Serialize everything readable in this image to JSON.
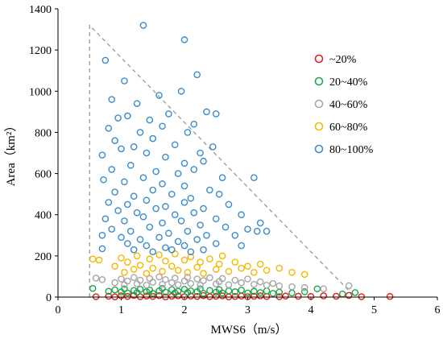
{
  "chart_data": {
    "type": "scatter",
    "xlabel": "MWS6（m/s）",
    "ylabel": "Area（km²）",
    "xlim": [
      0,
      6
    ],
    "ylim": [
      0,
      1400
    ],
    "xticks": [
      "0",
      "1",
      "2",
      "3",
      "4",
      "5",
      "6"
    ],
    "yticks": [
      "0",
      "200",
      "400",
      "600",
      "800",
      "1000",
      "1200",
      "1400"
    ],
    "grid": false,
    "legend_position": "right",
    "marker": "hollow-circle",
    "envelope": {
      "style": "dashed",
      "color": "#999999",
      "points": [
        [
          0.5,
          0
        ],
        [
          0.5,
          1320
        ],
        [
          4.7,
          0
        ]
      ]
    },
    "series": [
      {
        "name": "~20%",
        "color": "#e3201b",
        "points": [
          [
            0.6,
            2
          ],
          [
            0.8,
            4
          ],
          [
            0.9,
            1
          ],
          [
            1.0,
            6
          ],
          [
            1.1,
            3
          ],
          [
            1.2,
            8
          ],
          [
            1.3,
            2
          ],
          [
            1.4,
            5
          ],
          [
            1.5,
            3
          ],
          [
            1.6,
            7
          ],
          [
            1.7,
            1
          ],
          [
            1.8,
            4
          ],
          [
            1.9,
            6
          ],
          [
            2.0,
            2
          ],
          [
            2.1,
            5
          ],
          [
            2.2,
            3
          ],
          [
            2.3,
            7
          ],
          [
            2.4,
            2
          ],
          [
            2.5,
            4
          ],
          [
            2.6,
            6
          ],
          [
            2.7,
            1
          ],
          [
            2.8,
            3
          ],
          [
            2.9,
            5
          ],
          [
            3.0,
            2
          ],
          [
            3.1,
            4
          ],
          [
            3.2,
            6
          ],
          [
            3.3,
            3
          ],
          [
            3.5,
            2
          ],
          [
            3.6,
            5
          ],
          [
            3.8,
            4
          ],
          [
            4.0,
            3
          ],
          [
            4.2,
            6
          ],
          [
            4.4,
            4
          ],
          [
            4.6,
            8
          ],
          [
            4.8,
            2
          ],
          [
            5.25,
            3
          ]
        ]
      },
      {
        "name": "20~40%",
        "color": "#1aa64a",
        "points": [
          [
            0.55,
            42
          ],
          [
            0.8,
            28
          ],
          [
            0.9,
            35
          ],
          [
            1.0,
            25
          ],
          [
            1.05,
            40
          ],
          [
            1.1,
            20
          ],
          [
            1.2,
            32
          ],
          [
            1.25,
            22
          ],
          [
            1.3,
            38
          ],
          [
            1.4,
            26
          ],
          [
            1.45,
            34
          ],
          [
            1.5,
            18
          ],
          [
            1.6,
            30
          ],
          [
            1.65,
            42
          ],
          [
            1.7,
            24
          ],
          [
            1.8,
            36
          ],
          [
            1.85,
            20
          ],
          [
            1.9,
            28
          ],
          [
            2.0,
            38
          ],
          [
            2.05,
            22
          ],
          [
            2.1,
            30
          ],
          [
            2.2,
            26
          ],
          [
            2.25,
            40
          ],
          [
            2.3,
            18
          ],
          [
            2.4,
            32
          ],
          [
            2.5,
            24
          ],
          [
            2.55,
            36
          ],
          [
            2.6,
            20
          ],
          [
            2.7,
            30
          ],
          [
            2.8,
            26
          ],
          [
            2.9,
            34
          ],
          [
            3.0,
            20
          ],
          [
            3.1,
            28
          ],
          [
            3.2,
            22
          ],
          [
            3.3,
            30
          ],
          [
            3.4,
            18
          ],
          [
            3.5,
            24
          ],
          [
            3.7,
            20
          ],
          [
            3.9,
            26
          ],
          [
            4.1,
            40
          ],
          [
            4.5,
            15
          ],
          [
            4.7,
            22
          ]
        ]
      },
      {
        "name": "40~60%",
        "color": "#a6a6a6",
        "points": [
          [
            0.6,
            92
          ],
          [
            0.7,
            85
          ],
          [
            0.9,
            70
          ],
          [
            1.0,
            88
          ],
          [
            1.05,
            60
          ],
          [
            1.1,
            78
          ],
          [
            1.2,
            95
          ],
          [
            1.25,
            65
          ],
          [
            1.3,
            82
          ],
          [
            1.4,
            58
          ],
          [
            1.45,
            90
          ],
          [
            1.5,
            72
          ],
          [
            1.6,
            98
          ],
          [
            1.65,
            62
          ],
          [
            1.7,
            85
          ],
          [
            1.8,
            70
          ],
          [
            1.85,
            92
          ],
          [
            1.9,
            60
          ],
          [
            2.0,
            78
          ],
          [
            2.05,
            96
          ],
          [
            2.1,
            66
          ],
          [
            2.2,
            88
          ],
          [
            2.25,
            58
          ],
          [
            2.3,
            80
          ],
          [
            2.4,
            94
          ],
          [
            2.5,
            64
          ],
          [
            2.55,
            76
          ],
          [
            2.6,
            90
          ],
          [
            2.7,
            60
          ],
          [
            2.8,
            82
          ],
          [
            2.9,
            70
          ],
          [
            3.0,
            88
          ],
          [
            3.1,
            62
          ],
          [
            3.2,
            74
          ],
          [
            3.3,
            58
          ],
          [
            3.4,
            66
          ],
          [
            3.5,
            54
          ],
          [
            3.7,
            50
          ],
          [
            3.9,
            46
          ],
          [
            4.2,
            40
          ],
          [
            4.6,
            55
          ]
        ]
      },
      {
        "name": "60~80%",
        "color": "#f5b800",
        "points": [
          [
            0.55,
            185
          ],
          [
            0.65,
            180
          ],
          [
            0.9,
            150
          ],
          [
            1.0,
            190
          ],
          [
            1.05,
            120
          ],
          [
            1.1,
            170
          ],
          [
            1.2,
            135
          ],
          [
            1.25,
            200
          ],
          [
            1.3,
            155
          ],
          [
            1.4,
            115
          ],
          [
            1.45,
            185
          ],
          [
            1.5,
            140
          ],
          [
            1.6,
            205
          ],
          [
            1.65,
            125
          ],
          [
            1.7,
            175
          ],
          [
            1.8,
            150
          ],
          [
            1.85,
            210
          ],
          [
            1.9,
            130
          ],
          [
            2.0,
            180
          ],
          [
            2.05,
            120
          ],
          [
            2.1,
            195
          ],
          [
            2.2,
            145
          ],
          [
            2.25,
            170
          ],
          [
            2.3,
            115
          ],
          [
            2.4,
            185
          ],
          [
            2.5,
            135
          ],
          [
            2.55,
            160
          ],
          [
            2.6,
            200
          ],
          [
            2.7,
            125
          ],
          [
            2.8,
            170
          ],
          [
            2.9,
            140
          ],
          [
            3.0,
            150
          ],
          [
            3.1,
            120
          ],
          [
            3.2,
            160
          ],
          [
            3.3,
            130
          ],
          [
            3.5,
            140
          ],
          [
            3.7,
            120
          ],
          [
            3.9,
            110
          ]
        ]
      },
      {
        "name": "80~100%",
        "color": "#3a8dc8",
        "points": [
          [
            1.35,
            1320
          ],
          [
            2.0,
            1250
          ],
          [
            0.75,
            1150
          ],
          [
            1.05,
            1050
          ],
          [
            2.2,
            1080
          ],
          [
            0.85,
            960
          ],
          [
            1.25,
            940
          ],
          [
            1.6,
            980
          ],
          [
            1.95,
            1000
          ],
          [
            2.35,
            900
          ],
          [
            0.95,
            870
          ],
          [
            1.1,
            880
          ],
          [
            1.45,
            860
          ],
          [
            1.75,
            890
          ],
          [
            2.15,
            840
          ],
          [
            2.5,
            890
          ],
          [
            0.8,
            820
          ],
          [
            1.3,
            800
          ],
          [
            1.65,
            830
          ],
          [
            2.05,
            800
          ],
          [
            2.45,
            730
          ],
          [
            0.9,
            760
          ],
          [
            1.2,
            730
          ],
          [
            1.5,
            770
          ],
          [
            1.85,
            740
          ],
          [
            2.25,
            700
          ],
          [
            0.7,
            690
          ],
          [
            1.0,
            720
          ],
          [
            1.4,
            700
          ],
          [
            1.7,
            680
          ],
          [
            2.0,
            650
          ],
          [
            2.3,
            660
          ],
          [
            0.85,
            620
          ],
          [
            1.15,
            640
          ],
          [
            1.55,
            610
          ],
          [
            1.9,
            600
          ],
          [
            2.15,
            620
          ],
          [
            2.6,
            580
          ],
          [
            3.1,
            580
          ],
          [
            0.72,
            570
          ],
          [
            1.05,
            560
          ],
          [
            1.35,
            580
          ],
          [
            1.65,
            550
          ],
          [
            2.0,
            540
          ],
          [
            2.4,
            520
          ],
          [
            0.9,
            510
          ],
          [
            1.2,
            490
          ],
          [
            1.5,
            520
          ],
          [
            1.8,
            500
          ],
          [
            2.1,
            480
          ],
          [
            2.55,
            500
          ],
          [
            0.8,
            460
          ],
          [
            1.1,
            450
          ],
          [
            1.4,
            470
          ],
          [
            1.7,
            440
          ],
          [
            2.0,
            460
          ],
          [
            2.3,
            430
          ],
          [
            2.7,
            450
          ],
          [
            0.95,
            420
          ],
          [
            1.25,
            410
          ],
          [
            1.55,
            430
          ],
          [
            1.85,
            400
          ],
          [
            2.15,
            410
          ],
          [
            2.5,
            380
          ],
          [
            2.9,
            400
          ],
          [
            3.2,
            360
          ],
          [
            0.75,
            380
          ],
          [
            1.05,
            370
          ],
          [
            1.35,
            390
          ],
          [
            1.65,
            360
          ],
          [
            1.95,
            370
          ],
          [
            2.25,
            350
          ],
          [
            2.65,
            340
          ],
          [
            3.0,
            330
          ],
          [
            3.3,
            320
          ],
          [
            0.85,
            330
          ],
          [
            1.15,
            320
          ],
          [
            1.45,
            340
          ],
          [
            1.75,
            310
          ],
          [
            2.05,
            320
          ],
          [
            2.35,
            300
          ],
          [
            2.8,
            300
          ],
          [
            3.15,
            320
          ],
          [
            0.7,
            300
          ],
          [
            1.0,
            290
          ],
          [
            1.3,
            280
          ],
          [
            1.6,
            290
          ],
          [
            1.9,
            270
          ],
          [
            2.2,
            280
          ],
          [
            2.5,
            260
          ],
          [
            2.9,
            250
          ],
          [
            1.1,
            260
          ],
          [
            1.4,
            250
          ],
          [
            1.7,
            240
          ],
          [
            2.0,
            250
          ],
          [
            2.3,
            230
          ],
          [
            1.2,
            230
          ],
          [
            1.5,
            220
          ],
          [
            1.8,
            230
          ],
          [
            2.1,
            220
          ],
          [
            0.7,
            235
          ]
        ]
      }
    ]
  }
}
